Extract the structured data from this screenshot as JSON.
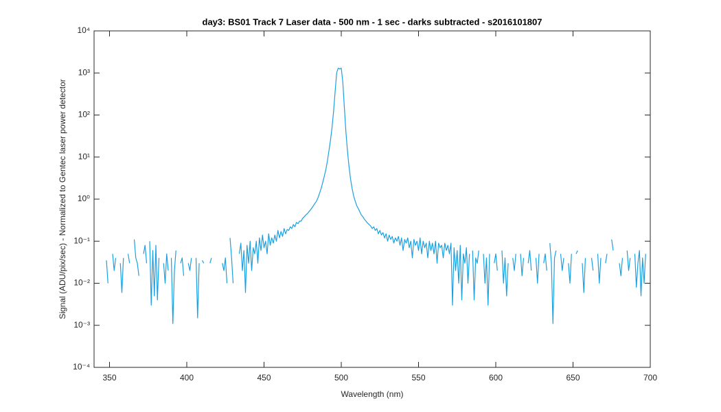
{
  "chart_data": {
    "type": "line",
    "title": "day3: BS01  Track 7 Laser data - 500 nm - 1 sec - darks subtracted - s2016101807",
    "x_label": "Wavelength (nm)",
    "y_label": "Signal (ADU/pix/sec) - Normalized to Gentec laser power detector",
    "log_y": true,
    "xlim": [
      340,
      700
    ],
    "xticks": [
      350,
      400,
      450,
      500,
      550,
      600,
      650,
      700
    ],
    "ylim": [
      0.0001,
      10000
    ],
    "yticks": [
      {
        "value": 0.0001,
        "label": "10⁻⁴"
      },
      {
        "value": 0.001,
        "label": "10⁻³"
      },
      {
        "value": 0.01,
        "label": "10⁻²"
      },
      {
        "value": 0.1,
        "label": "10⁻¹"
      },
      {
        "value": 1,
        "label": "10⁰"
      },
      {
        "value": 10,
        "label": "10¹"
      },
      {
        "value": 100,
        "label": "10²"
      },
      {
        "value": 1000,
        "label": "10³"
      },
      {
        "value": 10000,
        "label": "10⁴"
      }
    ],
    "x": [
      348,
      349,
      350,
      352,
      353,
      354,
      355,
      357,
      358,
      359,
      360,
      362,
      363,
      364,
      366,
      367,
      368,
      369,
      370,
      372,
      373,
      374,
      375,
      376,
      377,
      378,
      379,
      380,
      381,
      382,
      383,
      385,
      386,
      387,
      388,
      389,
      390,
      391,
      392,
      393,
      394,
      396,
      397,
      398,
      399,
      401,
      402,
      403,
      404,
      406,
      407,
      408,
      409,
      410,
      411,
      412,
      415,
      416,
      417,
      423,
      424,
      425,
      426,
      427,
      428,
      429,
      430,
      431,
      434,
      435,
      436,
      437,
      438,
      439,
      440,
      441,
      442,
      443,
      444,
      445,
      446,
      447,
      448,
      449,
      450,
      451,
      452,
      453,
      454,
      455,
      456,
      457,
      458,
      459,
      460,
      461,
      462,
      463,
      464,
      465,
      466,
      467,
      468,
      469,
      470,
      471,
      472,
      473,
      474,
      475,
      476,
      477,
      478,
      479,
      480,
      481,
      482,
      483,
      484,
      485,
      486,
      487,
      488,
      489,
      490,
      491,
      492,
      493,
      494,
      495,
      496,
      497,
      498,
      499,
      500,
      501,
      502,
      503,
      504,
      505,
      506,
      507,
      508,
      509,
      510,
      511,
      512,
      513,
      514,
      515,
      516,
      517,
      518,
      519,
      520,
      521,
      522,
      523,
      524,
      525,
      526,
      527,
      528,
      529,
      530,
      531,
      532,
      533,
      534,
      535,
      536,
      537,
      538,
      539,
      540,
      541,
      542,
      543,
      544,
      545,
      546,
      547,
      548,
      549,
      550,
      551,
      552,
      553,
      554,
      555,
      556,
      557,
      558,
      559,
      560,
      561,
      562,
      563,
      564,
      565,
      566,
      567,
      568,
      569,
      570,
      571,
      572,
      573,
      574,
      575,
      576,
      577,
      578,
      579,
      580,
      581,
      582,
      583,
      584,
      585,
      586,
      587,
      588,
      589,
      590,
      592,
      593,
      594,
      595,
      596,
      597,
      599,
      600,
      601,
      602,
      604,
      605,
      606,
      607,
      608,
      609,
      611,
      612,
      613,
      614,
      616,
      617,
      618,
      619,
      621,
      622,
      623,
      624,
      626,
      627,
      628,
      629,
      631,
      632,
      633,
      634,
      635,
      636,
      637,
      638,
      639,
      640,
      642,
      643,
      644,
      645,
      647,
      648,
      649,
      650,
      652,
      653,
      654,
      656,
      657,
      658,
      659,
      662,
      663,
      664,
      666,
      667,
      668,
      669,
      671,
      672,
      673,
      675,
      676,
      677,
      680,
      681,
      682,
      683,
      685,
      686,
      687,
      688,
      690,
      691,
      692,
      693,
      694,
      695,
      696,
      697
    ],
    "series": [
      {
        "name": "signal",
        "color": "#1aa0e0",
        "values": [
          0.035,
          0.01,
          null,
          0.05,
          0.02,
          0.04,
          null,
          0.03,
          0.006,
          0.04,
          null,
          0.05,
          0.03,
          null,
          0.11,
          0.04,
          0.03,
          0.015,
          null,
          0.05,
          0.08,
          0.03,
          null,
          0.1,
          0.003,
          0.06,
          0.005,
          0.08,
          0.004,
          0.04,
          null,
          0.03,
          0.01,
          0.05,
          0.02,
          null,
          0.04,
          0.0011,
          0.02,
          0.06,
          null,
          0.03,
          0.04,
          0.015,
          null,
          0.03,
          0.02,
          0.04,
          null,
          0.04,
          0.0015,
          0.03,
          null,
          0.035,
          0.03,
          null,
          0.03,
          0.04,
          null,
          0.03,
          0.02,
          0.04,
          0.01,
          null,
          0.12,
          0.04,
          0.01,
          null,
          0.05,
          0.09,
          0.02,
          0.06,
          0.006,
          0.08,
          0.03,
          0.1,
          0.02,
          0.07,
          0.05,
          0.1,
          0.03,
          0.12,
          0.06,
          0.14,
          0.07,
          0.1,
          0.05,
          0.15,
          0.08,
          0.12,
          0.09,
          0.14,
          0.1,
          0.18,
          0.12,
          0.17,
          0.13,
          0.2,
          0.15,
          0.19,
          0.18,
          0.22,
          0.2,
          0.25,
          0.22,
          0.28,
          0.26,
          0.3,
          0.3,
          0.35,
          0.38,
          0.42,
          0.45,
          0.5,
          0.55,
          0.62,
          0.7,
          0.8,
          0.9,
          1.1,
          1.4,
          1.8,
          2.5,
          3.5,
          5,
          8,
          14,
          25,
          50,
          120,
          350,
          1000,
          1300,
          1250,
          1300,
          600,
          150,
          40,
          14,
          6,
          3,
          1.8,
          1.2,
          0.9,
          0.7,
          0.6,
          0.5,
          0.42,
          0.38,
          0.33,
          0.3,
          0.27,
          0.25,
          0.23,
          0.2,
          0.22,
          0.18,
          0.2,
          0.15,
          0.18,
          0.14,
          0.16,
          0.12,
          0.15,
          0.1,
          0.14,
          0.11,
          0.13,
          0.09,
          0.12,
          0.1,
          0.13,
          0.08,
          0.12,
          0.06,
          0.11,
          0.09,
          0.12,
          0.07,
          0.1,
          0.04,
          0.11,
          0.08,
          0.1,
          0.06,
          0.12,
          0.05,
          0.1,
          0.07,
          0.09,
          0.04,
          0.1,
          0.06,
          0.09,
          0.05,
          0.1,
          0.03,
          0.09,
          0.07,
          0.08,
          0.04,
          0.09,
          0.06,
          0.08,
          0.05,
          0.09,
          0.003,
          0.07,
          0.02,
          0.06,
          0.01,
          0.08,
          0.004,
          0.05,
          0.03,
          0.07,
          0.01,
          0.05,
          null,
          0.06,
          0.004,
          0.04,
          0.03,
          0.06,
          null,
          0.05,
          0.01,
          0.04,
          0.003,
          0.05,
          null,
          0.03,
          0.05,
          0.02,
          null,
          0.06,
          0.01,
          0.04,
          0.005,
          0.03,
          null,
          0.04,
          0.02,
          0.05,
          null,
          0.05,
          0.015,
          0.04,
          null,
          0.03,
          0.06,
          0.02,
          null,
          0.04,
          0.01,
          0.05,
          null,
          0.03,
          0.05,
          0.02,
          null,
          0.09,
          0.03,
          0.0011,
          0.04,
          0.06,
          null,
          0.05,
          0.02,
          0.04,
          null,
          0.03,
          0.01,
          0.05,
          null,
          0.05,
          0.06,
          null,
          0.03,
          0.006,
          0.04,
          null,
          0.04,
          0.02,
          null,
          0.05,
          0.01,
          0.04,
          null,
          0.03,
          0.05,
          null,
          0.11,
          0.06,
          null,
          0.03,
          0.015,
          0.04,
          null,
          0.06,
          0.02,
          0.04,
          null,
          0.05,
          0.008,
          0.03,
          0.06,
          0.005,
          0.04,
          0.01,
          0.05
        ]
      }
    ]
  }
}
